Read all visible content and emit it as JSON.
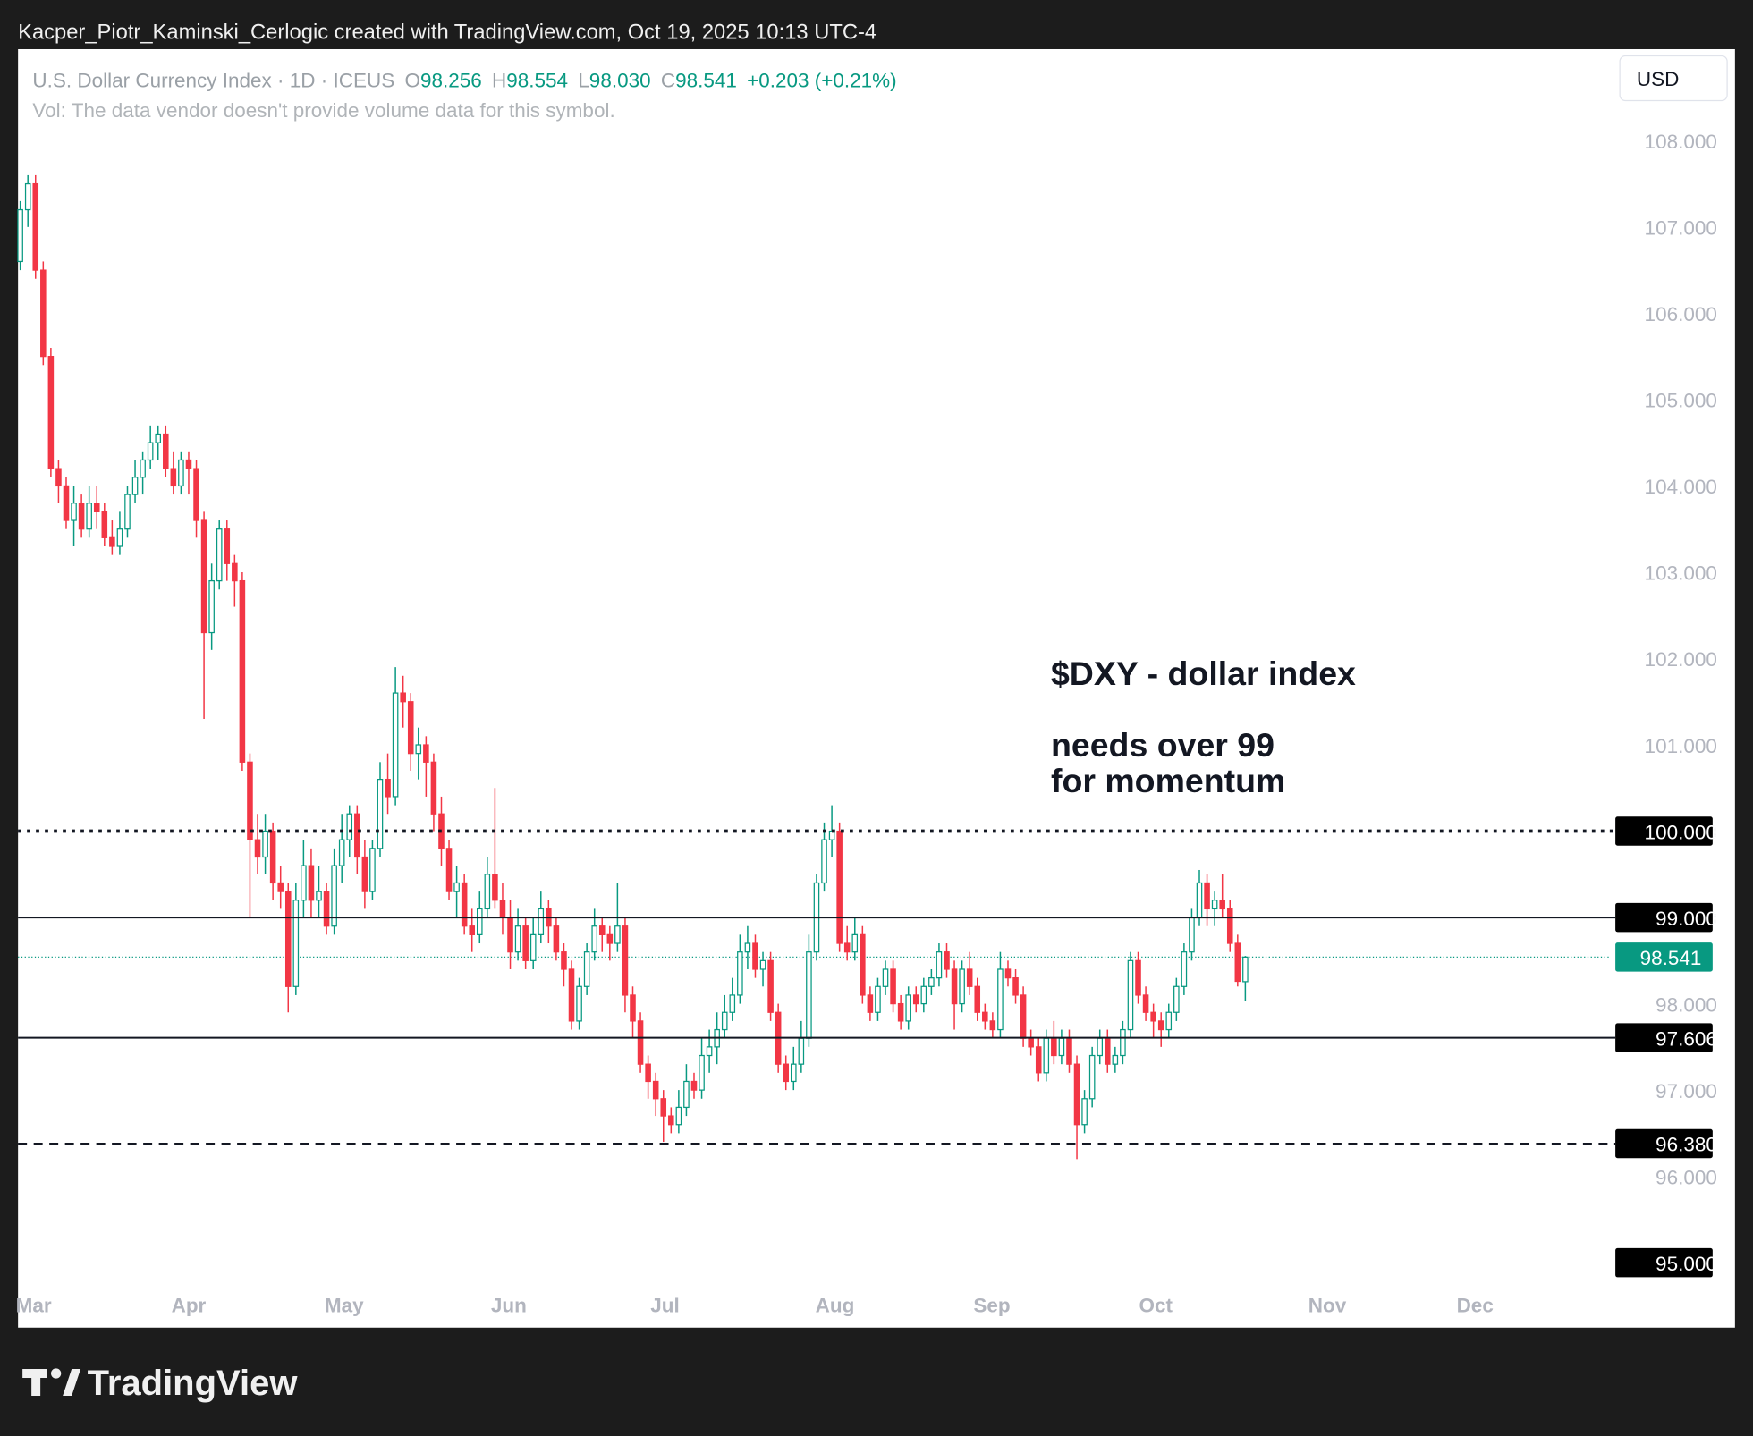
{
  "header": "Kacper_Piotr_Kaminski_Cerlogic created with TradingView.com, Oct 19, 2025 10:13 UTC-4",
  "footer": "TradingView",
  "chart_data": {
    "type": "candlestick",
    "legend": {
      "symbol": "U.S. Dollar Currency Index · 1D · ICEUS",
      "o_label": "O",
      "o": "98.256",
      "h_label": "H",
      "h": "98.554",
      "l_label": "L",
      "l": "98.030",
      "c_label": "C",
      "c": "98.541",
      "change": "+0.203 (+0.21%)"
    },
    "volume_note": "Vol: The data vendor doesn't provide volume data for this symbol.",
    "currency": "USD",
    "annotations": [
      "$DXY - dollar index",
      "needs over 99",
      "for momentum"
    ],
    "up_color": "#089981",
    "down_color": "#f23645",
    "ylim": [
      94.74,
      109.06
    ],
    "xlim": [
      -0.29,
      207.6
    ],
    "yticks": [
      {
        "value": 95,
        "label": "95.000",
        "boxed": true
      },
      {
        "value": 96,
        "label": "96.000"
      },
      {
        "value": 97,
        "label": "97.000"
      },
      {
        "value": 98,
        "label": "98.000"
      },
      {
        "value": 99,
        "label": "99.000"
      },
      {
        "value": 100,
        "label": "100.000"
      },
      {
        "value": 101,
        "label": "101.000"
      },
      {
        "value": 102,
        "label": "102.000"
      },
      {
        "value": 103,
        "label": "103.000"
      },
      {
        "value": 104,
        "label": "104.000"
      },
      {
        "value": 105,
        "label": "105.000"
      },
      {
        "value": 106,
        "label": "106.000"
      },
      {
        "value": 107,
        "label": "107.000"
      },
      {
        "value": 108,
        "label": "108.000"
      }
    ],
    "xticks": [
      {
        "value": 1.75,
        "label": "Mar"
      },
      {
        "value": 22,
        "label": "Apr"
      },
      {
        "value": 42.3,
        "label": "May"
      },
      {
        "value": 63.8,
        "label": "Jun"
      },
      {
        "value": 84.2,
        "label": "Jul"
      },
      {
        "value": 106.4,
        "label": "Aug"
      },
      {
        "value": 126.9,
        "label": "Sep"
      },
      {
        "value": 148.3,
        "label": "Oct"
      },
      {
        "value": 170.7,
        "label": "Nov"
      },
      {
        "value": 190,
        "label": "Dec"
      }
    ],
    "levels": [
      {
        "value": 100,
        "label": "100.000",
        "style": "dotted"
      },
      {
        "value": 99,
        "label": "99.000",
        "style": "solid"
      },
      {
        "value": 97.606,
        "label": "97.606",
        "style": "solid"
      },
      {
        "value": 96.38,
        "label": "96.380",
        "style": "dashed"
      }
    ],
    "last_price": {
      "value": 98.541,
      "label": "98.541"
    },
    "ohlc": [
      [
        106.6,
        107.3,
        106.5,
        107.2
      ],
      [
        107.2,
        107.6,
        107.0,
        107.5
      ],
      [
        107.5,
        107.6,
        106.4,
        106.5
      ],
      [
        106.5,
        106.6,
        105.4,
        105.5
      ],
      [
        105.5,
        105.6,
        104.1,
        104.2
      ],
      [
        104.2,
        104.3,
        103.8,
        104.0
      ],
      [
        104.0,
        104.1,
        103.5,
        103.6
      ],
      [
        103.6,
        104.0,
        103.3,
        103.8
      ],
      [
        103.8,
        103.9,
        103.4,
        103.5
      ],
      [
        103.5,
        104.0,
        103.4,
        103.8
      ],
      [
        103.8,
        104.0,
        103.5,
        103.7
      ],
      [
        103.7,
        103.8,
        103.3,
        103.4
      ],
      [
        103.4,
        103.6,
        103.2,
        103.3
      ],
      [
        103.3,
        103.7,
        103.2,
        103.5
      ],
      [
        103.5,
        104.0,
        103.4,
        103.9
      ],
      [
        103.9,
        104.3,
        103.8,
        104.1
      ],
      [
        104.1,
        104.4,
        103.9,
        104.3
      ],
      [
        104.3,
        104.7,
        104.2,
        104.5
      ],
      [
        104.5,
        104.7,
        104.3,
        104.6
      ],
      [
        104.6,
        104.7,
        104.1,
        104.2
      ],
      [
        104.2,
        104.4,
        103.9,
        104.0
      ],
      [
        104.0,
        104.4,
        103.9,
        104.3
      ],
      [
        104.3,
        104.4,
        103.9,
        104.2
      ],
      [
        104.2,
        104.3,
        103.4,
        103.6
      ],
      [
        103.6,
        103.7,
        101.3,
        102.3
      ],
      [
        102.3,
        103.1,
        102.1,
        102.9
      ],
      [
        102.9,
        103.6,
        102.8,
        103.5
      ],
      [
        103.5,
        103.6,
        102.9,
        103.1
      ],
      [
        103.1,
        103.2,
        102.6,
        102.9
      ],
      [
        102.9,
        103.0,
        100.7,
        100.8
      ],
      [
        100.8,
        100.9,
        99.0,
        99.9
      ],
      [
        99.9,
        100.2,
        99.5,
        99.7
      ],
      [
        99.7,
        100.2,
        99.5,
        100.0
      ],
      [
        100.0,
        100.1,
        99.2,
        99.4
      ],
      [
        99.4,
        99.6,
        99.1,
        99.3
      ],
      [
        99.3,
        99.4,
        97.9,
        98.2
      ],
      [
        98.2,
        99.4,
        98.1,
        99.2
      ],
      [
        99.2,
        99.9,
        99.0,
        99.6
      ],
      [
        99.6,
        99.8,
        99.0,
        99.2
      ],
      [
        99.2,
        99.6,
        99.0,
        99.3
      ],
      [
        99.3,
        99.4,
        98.8,
        98.9
      ],
      [
        98.9,
        99.8,
        98.8,
        99.6
      ],
      [
        99.6,
        100.2,
        99.4,
        99.9
      ],
      [
        99.9,
        100.3,
        99.7,
        100.2
      ],
      [
        100.2,
        100.3,
        99.5,
        99.7
      ],
      [
        99.7,
        99.9,
        99.1,
        99.3
      ],
      [
        99.3,
        99.9,
        99.2,
        99.8
      ],
      [
        99.8,
        100.8,
        99.7,
        100.6
      ],
      [
        100.6,
        100.9,
        100.2,
        100.4
      ],
      [
        100.4,
        101.9,
        100.3,
        101.6
      ],
      [
        101.6,
        101.8,
        101.2,
        101.5
      ],
      [
        101.5,
        101.6,
        100.7,
        100.9
      ],
      [
        100.9,
        101.2,
        100.6,
        101.0
      ],
      [
        101.0,
        101.1,
        100.4,
        100.8
      ],
      [
        100.8,
        100.9,
        100.0,
        100.2
      ],
      [
        100.2,
        100.4,
        99.6,
        99.8
      ],
      [
        99.8,
        99.9,
        99.2,
        99.3
      ],
      [
        99.3,
        99.6,
        99.0,
        99.4
      ],
      [
        99.4,
        99.5,
        98.8,
        98.9
      ],
      [
        98.9,
        99.1,
        98.6,
        98.8
      ],
      [
        98.8,
        99.3,
        98.7,
        99.1
      ],
      [
        99.1,
        99.7,
        99.0,
        99.5
      ],
      [
        99.5,
        100.5,
        99.1,
        99.2
      ],
      [
        99.2,
        99.4,
        98.8,
        99.0
      ],
      [
        99.0,
        99.2,
        98.4,
        98.6
      ],
      [
        98.6,
        99.1,
        98.5,
        98.9
      ],
      [
        98.9,
        99.0,
        98.4,
        98.5
      ],
      [
        98.5,
        99.0,
        98.4,
        98.8
      ],
      [
        98.8,
        99.3,
        98.7,
        99.1
      ],
      [
        99.1,
        99.2,
        98.7,
        98.9
      ],
      [
        98.9,
        99.0,
        98.5,
        98.6
      ],
      [
        98.6,
        98.7,
        98.2,
        98.4
      ],
      [
        98.4,
        98.5,
        97.7,
        97.8
      ],
      [
        97.8,
        98.3,
        97.7,
        98.2
      ],
      [
        98.2,
        98.7,
        98.1,
        98.6
      ],
      [
        98.6,
        99.1,
        98.5,
        98.9
      ],
      [
        98.9,
        99.0,
        98.6,
        98.8
      ],
      [
        98.8,
        98.9,
        98.5,
        98.7
      ],
      [
        98.7,
        99.4,
        98.6,
        98.9
      ],
      [
        98.9,
        99.0,
        97.9,
        98.1
      ],
      [
        98.1,
        98.2,
        97.6,
        97.8
      ],
      [
        97.8,
        97.9,
        97.2,
        97.3
      ],
      [
        97.3,
        97.4,
        96.9,
        97.1
      ],
      [
        97.1,
        97.2,
        96.7,
        96.9
      ],
      [
        96.9,
        97.0,
        96.4,
        96.7
      ],
      [
        96.7,
        96.8,
        96.5,
        96.6
      ],
      [
        96.6,
        97.0,
        96.5,
        96.8
      ],
      [
        96.8,
        97.3,
        96.7,
        97.1
      ],
      [
        97.1,
        97.2,
        96.9,
        97.0
      ],
      [
        97.0,
        97.6,
        96.9,
        97.4
      ],
      [
        97.4,
        97.7,
        97.2,
        97.5
      ],
      [
        97.5,
        97.9,
        97.3,
        97.7
      ],
      [
        97.7,
        98.1,
        97.6,
        97.9
      ],
      [
        97.9,
        98.3,
        97.8,
        98.1
      ],
      [
        98.1,
        98.8,
        98.0,
        98.6
      ],
      [
        98.6,
        98.9,
        98.4,
        98.7
      ],
      [
        98.7,
        98.8,
        98.3,
        98.4
      ],
      [
        98.4,
        98.6,
        98.2,
        98.5
      ],
      [
        98.5,
        98.6,
        97.8,
        97.9
      ],
      [
        97.9,
        98.0,
        97.2,
        97.3
      ],
      [
        97.3,
        97.4,
        97.0,
        97.1
      ],
      [
        97.1,
        97.5,
        97.0,
        97.3
      ],
      [
        97.3,
        97.8,
        97.2,
        97.6
      ],
      [
        97.6,
        98.8,
        97.5,
        98.6
      ],
      [
        98.6,
        99.5,
        98.5,
        99.4
      ],
      [
        99.4,
        100.1,
        99.3,
        99.9
      ],
      [
        99.9,
        100.3,
        99.7,
        100.0
      ],
      [
        100.0,
        100.1,
        98.6,
        98.7
      ],
      [
        98.7,
        98.9,
        98.5,
        98.6
      ],
      [
        98.6,
        99.0,
        98.5,
        98.8
      ],
      [
        98.8,
        98.9,
        98.0,
        98.1
      ],
      [
        98.1,
        98.2,
        97.8,
        97.9
      ],
      [
        97.9,
        98.3,
        97.8,
        98.2
      ],
      [
        98.2,
        98.5,
        98.1,
        98.4
      ],
      [
        98.4,
        98.5,
        97.9,
        98.0
      ],
      [
        98.0,
        98.1,
        97.7,
        97.8
      ],
      [
        97.8,
        98.2,
        97.7,
        98.1
      ],
      [
        98.1,
        98.2,
        97.9,
        98.0
      ],
      [
        98.0,
        98.3,
        97.9,
        98.2
      ],
      [
        98.2,
        98.4,
        98.1,
        98.3
      ],
      [
        98.3,
        98.7,
        98.2,
        98.6
      ],
      [
        98.6,
        98.7,
        98.3,
        98.4
      ],
      [
        98.4,
        98.5,
        97.7,
        98.0
      ],
      [
        98.0,
        98.5,
        97.9,
        98.4
      ],
      [
        98.4,
        98.6,
        98.1,
        98.2
      ],
      [
        98.2,
        98.3,
        97.8,
        97.9
      ],
      [
        97.9,
        98.0,
        97.7,
        97.8
      ],
      [
        97.8,
        97.9,
        97.6,
        97.7
      ],
      [
        97.7,
        98.6,
        97.6,
        98.4
      ],
      [
        98.4,
        98.5,
        98.2,
        98.3
      ],
      [
        98.3,
        98.4,
        98.0,
        98.1
      ],
      [
        98.1,
        98.2,
        97.5,
        97.6
      ],
      [
        97.6,
        97.7,
        97.4,
        97.5
      ],
      [
        97.5,
        97.6,
        97.1,
        97.2
      ],
      [
        97.2,
        97.7,
        97.1,
        97.6
      ],
      [
        97.6,
        97.8,
        97.3,
        97.4
      ],
      [
        97.4,
        97.7,
        97.3,
        97.6
      ],
      [
        97.6,
        97.7,
        97.2,
        97.3
      ],
      [
        97.3,
        97.4,
        96.2,
        96.6
      ],
      [
        96.6,
        97.0,
        96.5,
        96.9
      ],
      [
        96.9,
        97.5,
        96.8,
        97.4
      ],
      [
        97.4,
        97.7,
        97.3,
        97.6
      ],
      [
        97.6,
        97.7,
        97.2,
        97.3
      ],
      [
        97.3,
        97.5,
        97.2,
        97.4
      ],
      [
        97.4,
        97.8,
        97.3,
        97.7
      ],
      [
        97.7,
        98.6,
        97.6,
        98.5
      ],
      [
        98.5,
        98.6,
        98.0,
        98.1
      ],
      [
        98.1,
        98.2,
        97.8,
        97.9
      ],
      [
        97.9,
        98.0,
        97.6,
        97.8
      ],
      [
        97.8,
        97.9,
        97.5,
        97.7
      ],
      [
        97.7,
        98.0,
        97.6,
        97.9
      ],
      [
        97.9,
        98.3,
        97.8,
        98.2
      ],
      [
        98.2,
        98.7,
        98.1,
        98.6
      ],
      [
        98.6,
        99.1,
        98.5,
        99.0
      ],
      [
        99.0,
        99.55,
        98.9,
        99.4
      ],
      [
        99.4,
        99.5,
        98.9,
        99.1
      ],
      [
        99.1,
        99.3,
        98.9,
        99.2
      ],
      [
        99.2,
        99.5,
        99.0,
        99.1
      ],
      [
        99.1,
        99.2,
        98.6,
        98.7
      ],
      [
        98.7,
        98.8,
        98.2,
        98.26
      ],
      [
        98.256,
        98.554,
        98.03,
        98.541
      ]
    ]
  }
}
